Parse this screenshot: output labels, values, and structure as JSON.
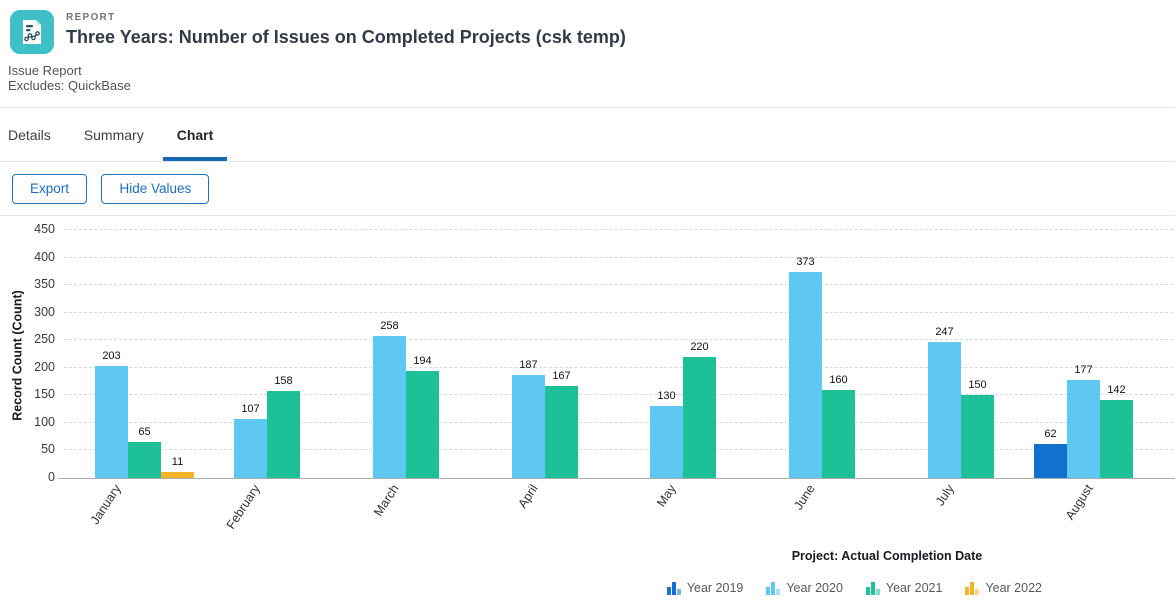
{
  "header": {
    "kicker": "REPORT",
    "title": "Three Years: Number of Issues on Completed Projects (csk temp)",
    "description_lines": [
      "Issue Report",
      "Excludes: QuickBase"
    ],
    "icon": {
      "name": "report-chart-icon",
      "bg_color": "#3EC0C6"
    }
  },
  "tabs": [
    {
      "label": "Details",
      "active": false
    },
    {
      "label": "Summary",
      "active": false
    },
    {
      "label": "Chart",
      "active": true
    }
  ],
  "toolbar": {
    "export_label": "Export",
    "hide_values_label": "Hide Values"
  },
  "colors": {
    "accent_blue": "#1B6FBF",
    "button_border": "#2173BE",
    "tab_underline": "#1767B2"
  },
  "chart_data": {
    "type": "bar",
    "title": "",
    "xlabel": "Project: Actual Completion Date",
    "ylabel": "Record Count (Count)",
    "ylim": [
      0,
      450
    ],
    "ytick_step": 50,
    "grid": true,
    "legend_position": "bottom-right",
    "value_labels_shown": true,
    "categories": [
      "January",
      "February",
      "March",
      "April",
      "May",
      "June",
      "July",
      "August"
    ],
    "series": [
      {
        "name": "Year 2019",
        "color": "#1371CE",
        "values": [
          null,
          null,
          null,
          null,
          null,
          null,
          null,
          62
        ]
      },
      {
        "name": "Year 2020",
        "color": "#5EC8F2",
        "values": [
          203,
          107,
          258,
          187,
          130,
          373,
          247,
          177
        ]
      },
      {
        "name": "Year 2021",
        "color": "#1EC097",
        "values": [
          65,
          158,
          194,
          167,
          220,
          160,
          150,
          142
        ]
      },
      {
        "name": "Year 2022",
        "color": "#F3B229",
        "values": [
          11,
          null,
          null,
          null,
          null,
          null,
          null,
          null
        ]
      }
    ]
  }
}
